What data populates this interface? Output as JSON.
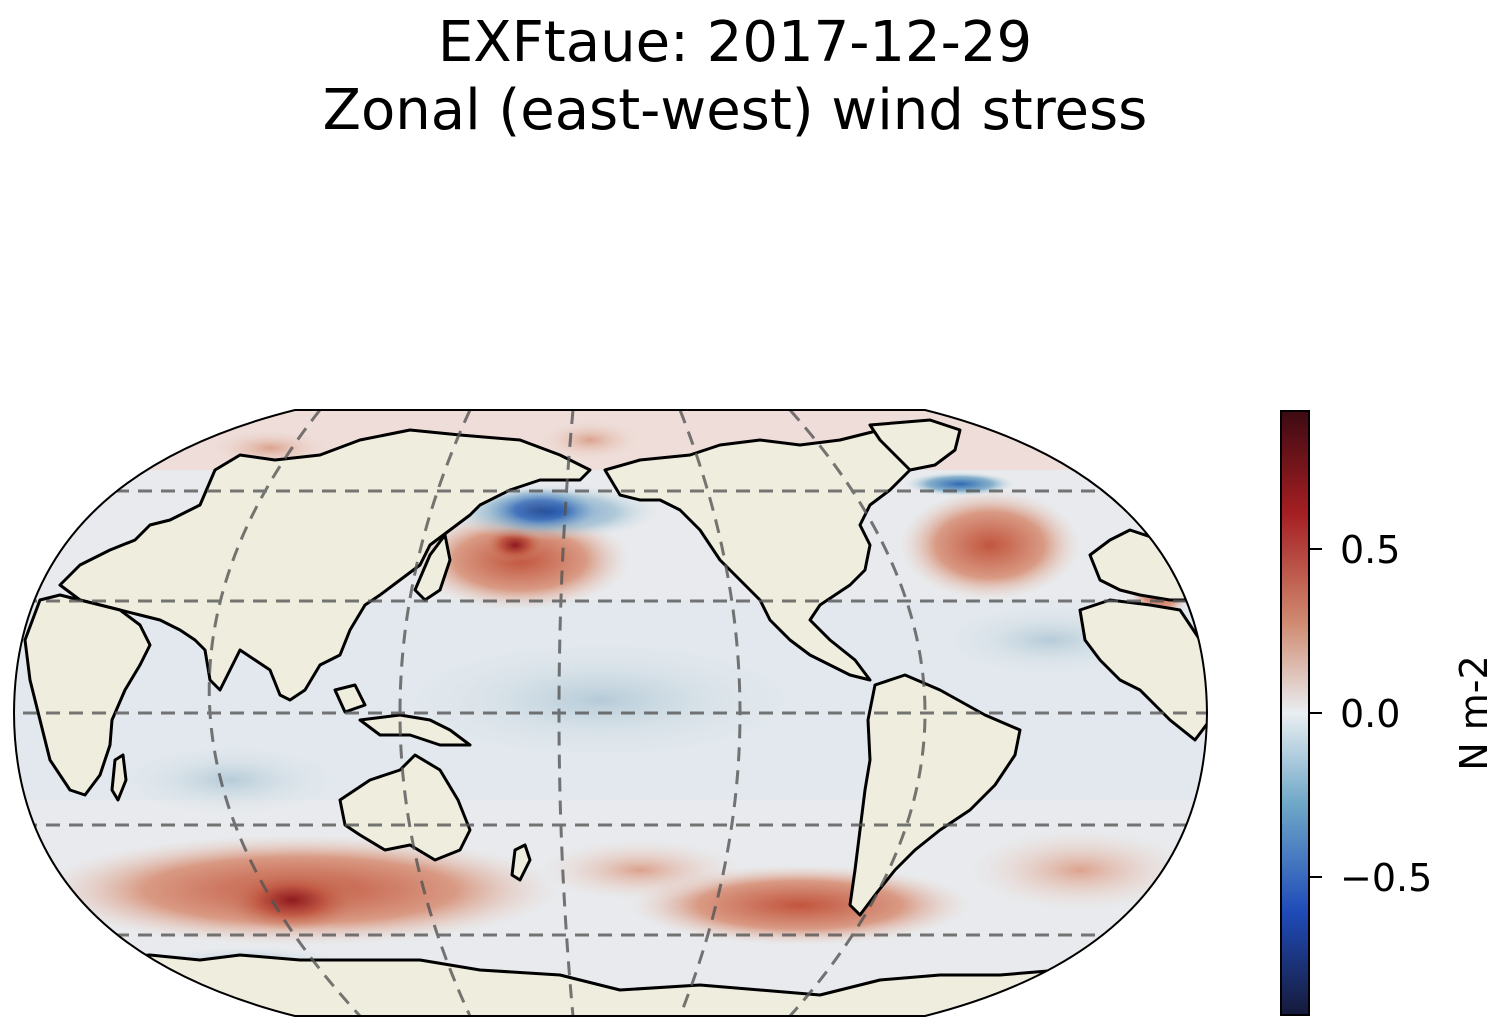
{
  "title": {
    "line1": "EXFtaue: 2017-12-29",
    "line2": "Zonal (east-west) wind stress"
  },
  "colorbar": {
    "label": "N m-2",
    "ticks": [
      {
        "value": 0.5,
        "label": "0.5"
      },
      {
        "value": 0.0,
        "label": "0.0"
      },
      {
        "value": -0.5,
        "label": "−0.5"
      }
    ],
    "range": [
      -0.9,
      0.9
    ],
    "colormap": "balance",
    "colors": [
      "#161a3a",
      "#1f4bb8",
      "#6fa8c8",
      "#e9eef1",
      "#d08a70",
      "#a51f22",
      "#3d0a12"
    ]
  },
  "map": {
    "projection": "Robinson",
    "central_longitude": -180,
    "land_color": "#efedde",
    "coastline_color": "#000000",
    "gridline_color": "#555555",
    "gridline_style": "dashed",
    "latitude_lines": [
      -60,
      -30,
      0,
      30,
      60
    ],
    "longitude_lines": [
      -120,
      -60,
      0,
      60,
      120
    ]
  }
}
